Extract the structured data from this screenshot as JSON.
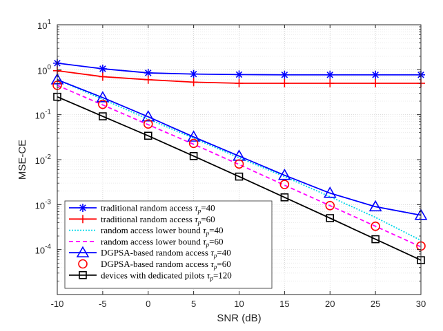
{
  "chart_data": {
    "type": "line",
    "xlabel": "SNR (dB)",
    "ylabel": "MSE-CE",
    "xlim": [
      -10,
      30
    ],
    "ylim_log10": [
      -5,
      1
    ],
    "y_scale": "log",
    "grid": "major and minor",
    "legend_position": "bottom-left",
    "x_ticks": [
      "-10",
      "-5",
      "0",
      "5",
      "10",
      "15",
      "20",
      "25",
      "30"
    ],
    "y_ticks": [
      {
        "base": "10",
        "exp": "-4"
      },
      {
        "base": "10",
        "exp": "-3"
      },
      {
        "base": "10",
        "exp": "-2"
      },
      {
        "base": "10",
        "exp": "-1"
      },
      {
        "base": "10",
        "exp": "0"
      },
      {
        "base": "10",
        "exp": "1"
      }
    ],
    "x": [
      -10,
      -5,
      0,
      5,
      10,
      15,
      20,
      25,
      30
    ],
    "series": [
      {
        "name_main": "traditional random access ",
        "name_param": "=40",
        "color": "#0000ff",
        "dash": "solid",
        "marker": "asterisk",
        "values": [
          1.4,
          1.05,
          0.85,
          0.8,
          0.78,
          0.77,
          0.77,
          0.77,
          0.77
        ]
      },
      {
        "name_main": "traditional random access ",
        "name_param": "=60",
        "color": "#ff0000",
        "dash": "solid",
        "marker": "plus",
        "values": [
          0.95,
          0.7,
          0.6,
          0.53,
          0.5,
          0.5,
          0.5,
          0.5,
          0.5
        ]
      },
      {
        "name_main": "random access lower bound ",
        "name_param": "=40",
        "color": "#00d8e8",
        "dash": "dotted",
        "marker": "none",
        "values": [
          0.6,
          0.22,
          0.08,
          0.03,
          0.011,
          0.0042,
          0.0015,
          0.00052,
          0.00016
        ]
      },
      {
        "name_main": "random access lower bound ",
        "name_param": "=60",
        "color": "#ff00ff",
        "dash": "dashed",
        "marker": "none",
        "values": [
          0.45,
          0.165,
          0.06,
          0.022,
          0.0078,
          0.0027,
          0.00095,
          0.00033,
          0.000115
        ]
      },
      {
        "name_main": "DGPSA-based random access ",
        "name_param": "=40",
        "color": "#0000ff",
        "dash": "solid",
        "marker": "triangle",
        "values": [
          0.6,
          0.24,
          0.09,
          0.032,
          0.012,
          0.0045,
          0.0018,
          0.0009,
          0.00058
        ]
      },
      {
        "name_main": "DGPSA-based random access ",
        "name_param": "=60",
        "color": "#ff0000",
        "dash": "none",
        "marker": "circle",
        "values": [
          0.45,
          0.17,
          0.062,
          0.023,
          0.008,
          0.0028,
          0.00095,
          0.00033,
          0.00012
        ]
      },
      {
        "name_main": "devices with dedicated pilots ",
        "name_param": "=120",
        "color": "#000000",
        "dash": "solid",
        "marker": "square",
        "values": [
          0.25,
          0.092,
          0.034,
          0.012,
          0.0042,
          0.00145,
          0.0005,
          0.00017,
          5.8e-05
        ]
      }
    ]
  }
}
